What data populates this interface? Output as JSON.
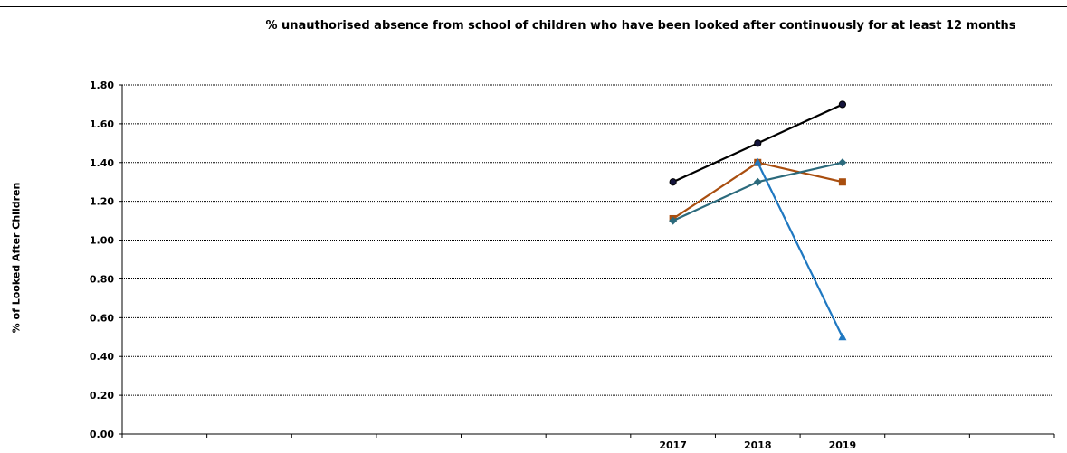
{
  "chart_data": {
    "type": "line",
    "title": "% unauthorised absence from school of children who have been looked after continuously for at least 12 months",
    "xlabel": "",
    "ylabel": "% of Looked After Children",
    "ylim": [
      0,
      1.8
    ],
    "yticks": [
      "0.00",
      "0.20",
      "0.40",
      "0.60",
      "0.80",
      "1.00",
      "1.20",
      "1.40",
      "1.60",
      "1.80"
    ],
    "categories": [
      "",
      "",
      "",
      "",
      "",
      "",
      "2017",
      "2018",
      "2019",
      "",
      ""
    ],
    "grid": true,
    "series": [
      {
        "color": "#000000",
        "marker": "circle",
        "values": [
          null,
          null,
          null,
          null,
          null,
          null,
          1.3,
          1.5,
          1.7,
          null,
          null
        ]
      },
      {
        "color": "#a94e0f",
        "marker": "square",
        "values": [
          null,
          null,
          null,
          null,
          null,
          null,
          1.11,
          1.4,
          1.3,
          null,
          null
        ]
      },
      {
        "color": "#2b6a7c",
        "marker": "diamond",
        "values": [
          null,
          null,
          null,
          null,
          null,
          null,
          1.1,
          1.3,
          1.4,
          null,
          null
        ]
      },
      {
        "color": "#1f78c1",
        "marker": "triangle",
        "values": [
          null,
          null,
          null,
          null,
          null,
          null,
          null,
          1.4,
          0.5,
          null,
          null
        ]
      }
    ]
  }
}
